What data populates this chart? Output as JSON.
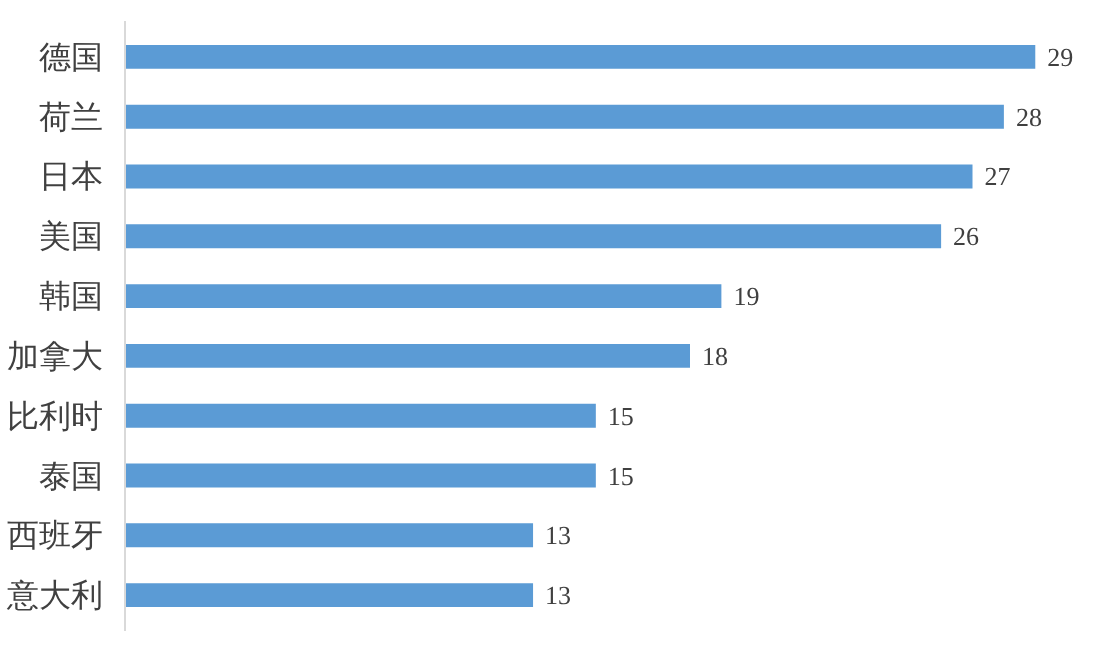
{
  "chart_data": {
    "type": "bar",
    "orientation": "horizontal",
    "categories": [
      "德国",
      "荷兰",
      "日本",
      "美国",
      "韩国",
      "加拿大",
      "比利时",
      "泰国",
      "西班牙",
      "意大利"
    ],
    "values": [
      29,
      28,
      27,
      26,
      19,
      18,
      15,
      15,
      13,
      13
    ],
    "color": "#5b9bd5",
    "data_labels": true
  }
}
